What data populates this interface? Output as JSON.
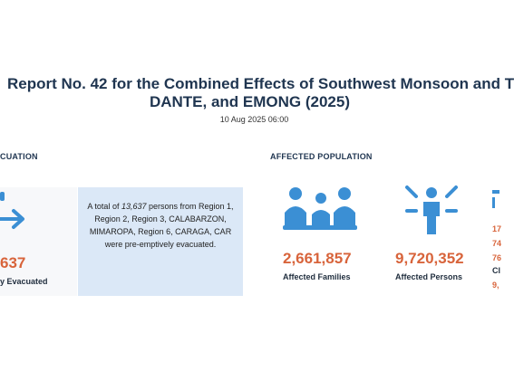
{
  "header": {
    "title_line1": "Report No. 42 for the Combined Effects of Southwest Monsoon and T",
    "title_line2": "DANTE, and EMONG (2025)",
    "date": "10 Aug 2025 06:00"
  },
  "evacuation": {
    "heading": "CUATION",
    "number": "637",
    "label": "y Evacuated",
    "note": {
      "before": "A total of",
      "number": "13,637",
      "after": "persons from Region 1, Region 2, Region 3, CALABARZON, MIMAROPA, Region 6, CARAGA, CAR were pre-emptively evacuated."
    }
  },
  "affected": {
    "heading": "AFFECTED POPULATION",
    "families": {
      "number": "2,661,857",
      "label": "Affected Families"
    },
    "persons": {
      "number": "9,720,352",
      "label": "Affected Persons"
    },
    "right_column": [
      "17",
      "74",
      "76",
      "Cl",
      "9,"
    ]
  }
}
